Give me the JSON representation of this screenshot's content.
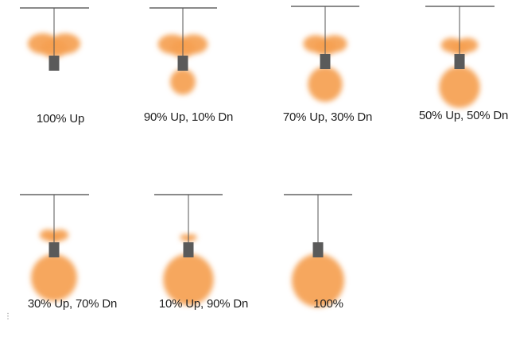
{
  "colors": {
    "light": "#f5a050",
    "rod": "#555555",
    "ceiling": "#8a8a8a",
    "fixture": "#5a5a5a"
  },
  "fixtures": [
    {
      "label": "100% Up",
      "up_percent": 100,
      "down_percent": 0
    },
    {
      "label": "90% Up, 10% Dn",
      "up_percent": 90,
      "down_percent": 10
    },
    {
      "label": "70% Up, 30% Dn",
      "up_percent": 70,
      "down_percent": 30
    },
    {
      "label": "50% Up, 50% Dn",
      "up_percent": 50,
      "down_percent": 50
    },
    {
      "label": "30% Up, 70% Dn",
      "up_percent": 30,
      "down_percent": 70
    },
    {
      "label": "10% Up, 90% Dn",
      "up_percent": 10,
      "down_percent": 90
    },
    {
      "label": "100%",
      "up_percent": 0,
      "down_percent": 100
    }
  ]
}
